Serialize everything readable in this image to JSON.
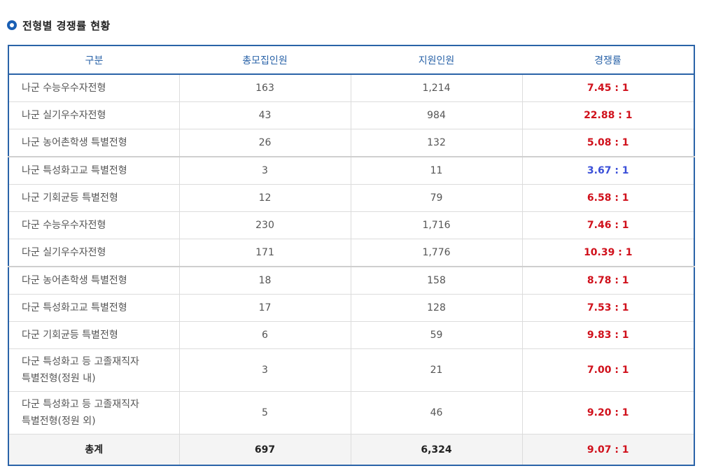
{
  "section_title": "전형별 경쟁률 현황",
  "table": {
    "headers": [
      "구분",
      "총모집인원",
      "지원인원",
      "경쟁률"
    ],
    "rows": [
      {
        "name": "나군 수능우수자전형",
        "quota": "163",
        "applicants": "1,214",
        "ratio": "7.45 : 1"
      },
      {
        "name": "나군 실기우수자전형",
        "quota": "43",
        "applicants": "984",
        "ratio": "22.88 : 1"
      },
      {
        "name": "나군 농어촌학생 특별전형",
        "quota": "26",
        "applicants": "132",
        "ratio": "5.08 : 1"
      },
      {
        "name": "나군 특성화고교 특별전형",
        "quota": "3",
        "applicants": "11",
        "ratio": "3.67 : 1"
      },
      {
        "name": "나군 기회균등 특별전형",
        "quota": "12",
        "applicants": "79",
        "ratio": "6.58 : 1"
      },
      {
        "name": "다군 수능우수자전형",
        "quota": "230",
        "applicants": "1,716",
        "ratio": "7.46 : 1"
      },
      {
        "name": "다군 실기우수자전형",
        "quota": "171",
        "applicants": "1,776",
        "ratio": "10.39 : 1"
      },
      {
        "name": "다군 농어촌학생 특별전형",
        "quota": "18",
        "applicants": "158",
        "ratio": "8.78 : 1"
      },
      {
        "name": "다군 특성화고교 특별전형",
        "quota": "17",
        "applicants": "128",
        "ratio": "7.53 : 1"
      },
      {
        "name": "다군 기회균등 특별전형",
        "quota": "6",
        "applicants": "59",
        "ratio": "9.83 : 1"
      },
      {
        "name_line1": "다군 특성화고 등 고졸재직자",
        "name_line2": "특별전형(정원 내)",
        "quota": "3",
        "applicants": "21",
        "ratio": "7.00 : 1"
      },
      {
        "name_line1": "다군 특성화고 등 고졸재직자",
        "name_line2": "특별전형(정원 외)",
        "quota": "5",
        "applicants": "46",
        "ratio": "9.20 : 1"
      }
    ],
    "total": {
      "name": "총계",
      "quota": "697",
      "applicants": "6,324",
      "ratio": "9.07 : 1"
    }
  },
  "colors": {
    "header_blue": "#2a63a8",
    "ratio_red": "#d0101b",
    "ratio_blue": "#3a4fd8"
  }
}
